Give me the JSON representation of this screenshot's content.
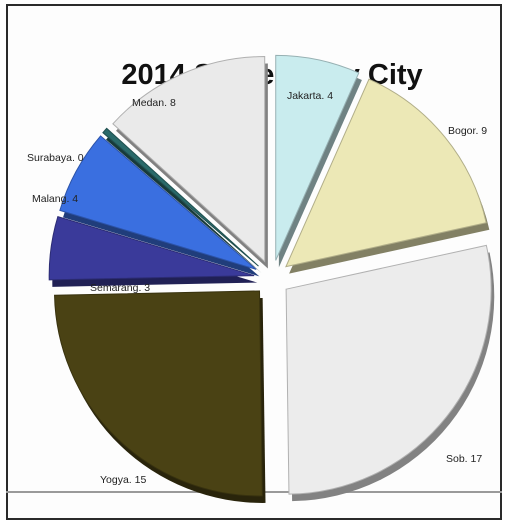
{
  "chart_data": {
    "type": "pie",
    "title": "2014 Students by City",
    "slices": [
      {
        "label": "Jakarta. 4",
        "value": 4,
        "color": "#c9ecee"
      },
      {
        "label": "Bogor. 9",
        "value": 9,
        "color": "#ece8b6"
      },
      {
        "label": "Sob. 17",
        "value": 17,
        "color": "#ececec"
      },
      {
        "label": "Yogya. 15",
        "value": 15,
        "color": "#4a4214"
      },
      {
        "label": "Semarang. 3",
        "value": 3,
        "color": "#3a3a9a"
      },
      {
        "label": "Malang. 4",
        "value": 4,
        "color": "#3a6fe0"
      },
      {
        "label": "Surabaya. 0",
        "value": 0,
        "color": "#2a6a6a"
      },
      {
        "label": "Medan. 8",
        "value": 8,
        "color": "#eaeaea"
      }
    ]
  }
}
